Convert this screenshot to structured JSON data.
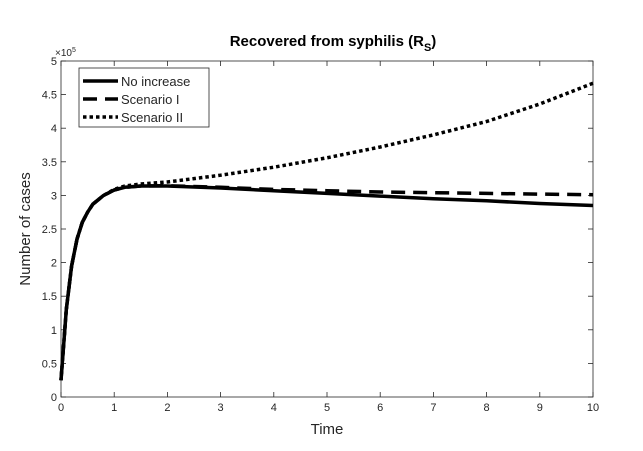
{
  "chart_data": {
    "type": "line",
    "title": "Recovered from syphilis (R",
    "title_subscript": "S",
    "title_close": ")",
    "xlabel": "Time",
    "ylabel": "Number of cases",
    "xlim": [
      0,
      10
    ],
    "ylim": [
      0,
      500000
    ],
    "y_exponent_label": "×10",
    "y_exponent": "5",
    "xticks": [
      "0",
      "1",
      "2",
      "3",
      "4",
      "5",
      "6",
      "7",
      "8",
      "9",
      "10"
    ],
    "yticks": [
      "0",
      "0.5",
      "1",
      "1.5",
      "2",
      "2.5",
      "3",
      "3.5",
      "4",
      "4.5",
      "5"
    ],
    "legend_position": "top-left",
    "grid": false,
    "series": [
      {
        "name": "No increase",
        "style": "solid",
        "x": [
          0,
          0.1,
          0.2,
          0.3,
          0.4,
          0.5,
          0.6,
          0.8,
          1,
          1.2,
          1.5,
          2,
          3,
          4,
          5,
          6,
          7,
          8,
          9,
          10
        ],
        "values": [
          25000,
          130000,
          195000,
          235000,
          260000,
          275000,
          287000,
          300000,
          308000,
          312000,
          314000,
          314000,
          311000,
          307000,
          303000,
          299000,
          295000,
          292000,
          288000,
          285000
        ]
      },
      {
        "name": "Scenario I",
        "style": "dashed",
        "x": [
          0,
          0.1,
          0.2,
          0.3,
          0.4,
          0.5,
          0.6,
          0.8,
          1,
          1.2,
          1.5,
          2,
          3,
          4,
          5,
          6,
          7,
          8,
          9,
          10
        ],
        "values": [
          25000,
          130000,
          195000,
          235000,
          260000,
          275000,
          287000,
          300000,
          308000,
          312000,
          314000,
          314500,
          312000,
          309000,
          307000,
          305000,
          304000,
          303000,
          302000,
          301000
        ]
      },
      {
        "name": "Scenario II",
        "style": "dotted",
        "x": [
          0,
          0.1,
          0.2,
          0.3,
          0.4,
          0.5,
          0.6,
          0.8,
          1,
          1.2,
          1.5,
          2,
          2.5,
          3,
          4,
          5,
          6,
          7,
          8,
          9,
          10
        ],
        "values": [
          25000,
          130000,
          195000,
          235000,
          260000,
          275000,
          287000,
          300000,
          309000,
          314000,
          317000,
          320000,
          325000,
          330000,
          342000,
          356000,
          372000,
          390000,
          410000,
          436000,
          467000
        ]
      }
    ]
  }
}
